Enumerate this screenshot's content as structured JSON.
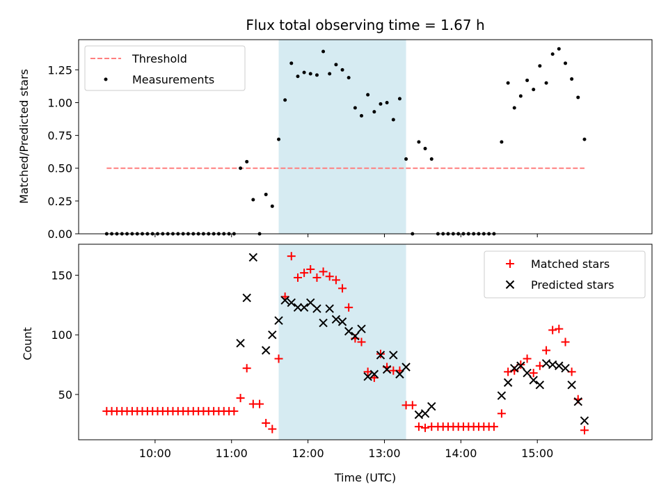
{
  "chart_data": [
    {
      "type": "scatter",
      "title": "Flux total observing time = 1.67 h",
      "xlabel": "",
      "ylabel": "Matched/Predicted stars",
      "ylim": [
        0,
        1.48
      ],
      "yticks": [
        0.0,
        0.25,
        0.5,
        0.75,
        1.0,
        1.25
      ],
      "ytick_labels": [
        "0.00",
        "0.25",
        "0.50",
        "0.75",
        "1.00",
        "1.25"
      ],
      "xlim_hours": [
        9.0,
        16.5
      ],
      "shaded_interval_hours": [
        11.617,
        13.283
      ],
      "shade_color": "#add8e6",
      "threshold": {
        "name": "Threshold",
        "value": 0.5,
        "x_range_hours": [
          9.367,
          15.617
        ],
        "color": "#ff7f7f",
        "style": "dashed"
      },
      "legend": {
        "position": "top-left",
        "entries": [
          "Threshold",
          "Measurements"
        ]
      },
      "series": [
        {
          "name": "Measurements",
          "color": "#000000",
          "marker": "dot",
          "points": [
            [
              9.367,
              0
            ],
            [
              9.433,
              0
            ],
            [
              9.5,
              0
            ],
            [
              9.567,
              0
            ],
            [
              9.633,
              0
            ],
            [
              9.7,
              0
            ],
            [
              9.767,
              0
            ],
            [
              9.833,
              0
            ],
            [
              9.9,
              0
            ],
            [
              9.967,
              0
            ],
            [
              10.033,
              0
            ],
            [
              10.1,
              0
            ],
            [
              10.167,
              0
            ],
            [
              10.233,
              0
            ],
            [
              10.3,
              0
            ],
            [
              10.367,
              0
            ],
            [
              10.433,
              0
            ],
            [
              10.5,
              0
            ],
            [
              10.567,
              0
            ],
            [
              10.633,
              0
            ],
            [
              10.7,
              0
            ],
            [
              10.767,
              0
            ],
            [
              10.833,
              0
            ],
            [
              10.9,
              0
            ],
            [
              10.967,
              0
            ],
            [
              11.033,
              0
            ],
            [
              11.117,
              0.5
            ],
            [
              11.2,
              0.55
            ],
            [
              11.283,
              0.26
            ],
            [
              11.367,
              0
            ],
            [
              11.45,
              0.3
            ],
            [
              11.533,
              0.21
            ],
            [
              11.617,
              0.72
            ],
            [
              11.7,
              1.02
            ],
            [
              11.783,
              1.3
            ],
            [
              11.867,
              1.2
            ],
            [
              11.95,
              1.23
            ],
            [
              12.033,
              1.22
            ],
            [
              12.117,
              1.21
            ],
            [
              12.2,
              1.39
            ],
            [
              12.283,
              1.22
            ],
            [
              12.367,
              1.29
            ],
            [
              12.45,
              1.25
            ],
            [
              12.533,
              1.19
            ],
            [
              12.617,
              0.96
            ],
            [
              12.7,
              0.9
            ],
            [
              12.783,
              1.06
            ],
            [
              12.867,
              0.93
            ],
            [
              12.95,
              0.99
            ],
            [
              13.033,
              1.0
            ],
            [
              13.117,
              0.87
            ],
            [
              13.2,
              1.03
            ],
            [
              13.283,
              0.57
            ],
            [
              13.367,
              0
            ],
            [
              13.45,
              0.7
            ],
            [
              13.533,
              0.65
            ],
            [
              13.617,
              0.57
            ],
            [
              13.7,
              0
            ],
            [
              13.767,
              0
            ],
            [
              13.833,
              0
            ],
            [
              13.9,
              0
            ],
            [
              13.967,
              0
            ],
            [
              14.033,
              0
            ],
            [
              14.1,
              0
            ],
            [
              14.167,
              0
            ],
            [
              14.233,
              0
            ],
            [
              14.3,
              0
            ],
            [
              14.367,
              0
            ],
            [
              14.433,
              0
            ],
            [
              14.533,
              0.7
            ],
            [
              14.617,
              1.15
            ],
            [
              14.7,
              0.96
            ],
            [
              14.783,
              1.05
            ],
            [
              14.867,
              1.17
            ],
            [
              14.95,
              1.1
            ],
            [
              15.033,
              1.28
            ],
            [
              15.117,
              1.15
            ],
            [
              15.2,
              1.37
            ],
            [
              15.283,
              1.41
            ],
            [
              15.367,
              1.3
            ],
            [
              15.45,
              1.18
            ],
            [
              15.533,
              1.04
            ],
            [
              15.617,
              0.72
            ]
          ]
        }
      ]
    },
    {
      "type": "scatter",
      "title": "",
      "xlabel": "Time (UTC)",
      "ylabel": "Count",
      "ylim": [
        12,
        176
      ],
      "yticks": [
        50,
        100,
        150
      ],
      "ytick_labels": [
        "50",
        "100",
        "150"
      ],
      "xlim_hours": [
        9.0,
        16.5
      ],
      "xticks_hours": [
        10,
        11,
        12,
        13,
        14,
        15
      ],
      "xtick_labels": [
        "10:00",
        "11:00",
        "12:00",
        "13:00",
        "14:00",
        "15:00"
      ],
      "shaded_interval_hours": [
        11.617,
        13.283
      ],
      "shade_color": "#add8e6",
      "legend": {
        "position": "top-right",
        "entries": [
          "Matched stars",
          "Predicted stars"
        ]
      },
      "series": [
        {
          "name": "Matched stars",
          "color": "#ff0000",
          "marker": "plus",
          "points": [
            [
              9.367,
              36
            ],
            [
              9.433,
              36
            ],
            [
              9.5,
              36
            ],
            [
              9.567,
              36
            ],
            [
              9.633,
              36
            ],
            [
              9.7,
              36
            ],
            [
              9.767,
              36
            ],
            [
              9.833,
              36
            ],
            [
              9.9,
              36
            ],
            [
              9.967,
              36
            ],
            [
              10.033,
              36
            ],
            [
              10.1,
              36
            ],
            [
              10.167,
              36
            ],
            [
              10.233,
              36
            ],
            [
              10.3,
              36
            ],
            [
              10.367,
              36
            ],
            [
              10.433,
              36
            ],
            [
              10.5,
              36
            ],
            [
              10.567,
              36
            ],
            [
              10.633,
              36
            ],
            [
              10.7,
              36
            ],
            [
              10.767,
              36
            ],
            [
              10.833,
              36
            ],
            [
              10.9,
              36
            ],
            [
              10.967,
              36
            ],
            [
              11.033,
              36
            ],
            [
              11.117,
              47
            ],
            [
              11.2,
              72
            ],
            [
              11.283,
              42
            ],
            [
              11.367,
              42
            ],
            [
              11.45,
              26
            ],
            [
              11.533,
              21
            ],
            [
              11.617,
              80
            ],
            [
              11.7,
              132
            ],
            [
              11.783,
              166
            ],
            [
              11.867,
              148
            ],
            [
              11.95,
              152
            ],
            [
              12.033,
              155
            ],
            [
              12.117,
              148
            ],
            [
              12.2,
              153
            ],
            [
              12.283,
              149
            ],
            [
              12.367,
              146
            ],
            [
              12.45,
              139
            ],
            [
              12.533,
              123
            ],
            [
              12.617,
              97
            ],
            [
              12.7,
              94
            ],
            [
              12.783,
              69
            ],
            [
              12.867,
              64
            ],
            [
              12.95,
              84
            ],
            [
              13.033,
              73
            ],
            [
              13.117,
              70
            ],
            [
              13.2,
              70
            ],
            [
              13.283,
              41
            ],
            [
              13.367,
              41
            ],
            [
              13.45,
              23
            ],
            [
              13.533,
              22
            ],
            [
              13.617,
              23
            ],
            [
              13.7,
              23
            ],
            [
              13.767,
              23
            ],
            [
              13.833,
              23
            ],
            [
              13.9,
              23
            ],
            [
              13.967,
              23
            ],
            [
              14.033,
              23
            ],
            [
              14.1,
              23
            ],
            [
              14.167,
              23
            ],
            [
              14.233,
              23
            ],
            [
              14.3,
              23
            ],
            [
              14.367,
              23
            ],
            [
              14.433,
              23
            ],
            [
              14.533,
              34
            ],
            [
              14.617,
              69
            ],
            [
              14.7,
              70
            ],
            [
              14.783,
              75
            ],
            [
              14.867,
              80
            ],
            [
              14.95,
              68
            ],
            [
              15.033,
              74
            ],
            [
              15.117,
              87
            ],
            [
              15.2,
              104
            ],
            [
              15.283,
              105
            ],
            [
              15.367,
              94
            ],
            [
              15.45,
              69
            ],
            [
              15.533,
              46
            ],
            [
              15.617,
              20
            ]
          ]
        },
        {
          "name": "Predicted stars",
          "color": "#000000",
          "marker": "x",
          "points": [
            [
              11.117,
              93
            ],
            [
              11.2,
              131
            ],
            [
              11.283,
              165
            ],
            [
              11.45,
              87
            ],
            [
              11.533,
              100
            ],
            [
              11.617,
              112
            ],
            [
              11.7,
              129
            ],
            [
              11.783,
              127
            ],
            [
              11.867,
              123
            ],
            [
              11.95,
              123
            ],
            [
              12.033,
              127
            ],
            [
              12.117,
              122
            ],
            [
              12.2,
              110
            ],
            [
              12.283,
              122
            ],
            [
              12.367,
              113
            ],
            [
              12.45,
              111
            ],
            [
              12.533,
              103
            ],
            [
              12.617,
              99
            ],
            [
              12.7,
              105
            ],
            [
              12.783,
              65
            ],
            [
              12.867,
              67
            ],
            [
              12.95,
              83
            ],
            [
              13.033,
              71
            ],
            [
              13.117,
              83
            ],
            [
              13.2,
              67
            ],
            [
              13.283,
              73
            ],
            [
              13.45,
              33
            ],
            [
              13.533,
              34
            ],
            [
              13.617,
              40
            ],
            [
              14.533,
              49
            ],
            [
              14.617,
              60
            ],
            [
              14.7,
              72
            ],
            [
              14.783,
              74
            ],
            [
              14.867,
              68
            ],
            [
              14.95,
              62
            ],
            [
              15.033,
              58
            ],
            [
              15.117,
              76
            ],
            [
              15.2,
              75
            ],
            [
              15.283,
              74
            ],
            [
              15.367,
              72
            ],
            [
              15.45,
              58
            ],
            [
              15.533,
              44
            ],
            [
              15.617,
              28
            ]
          ]
        }
      ]
    }
  ]
}
